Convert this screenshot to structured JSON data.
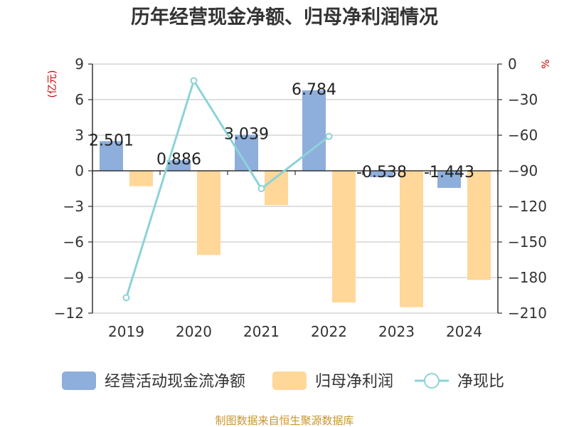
{
  "chart_data": {
    "type": "bar",
    "title": "历年经营现金净额、归母净利润情况",
    "categories": [
      "2019",
      "2020",
      "2021",
      "2022",
      "2023",
      "2024"
    ],
    "y_left": {
      "unit": "(亿元)",
      "ylim": [
        -12,
        9
      ],
      "ticks": [
        9,
        6,
        3,
        0,
        -3,
        -6,
        -9,
        -12
      ]
    },
    "y_right": {
      "unit": "%",
      "ylim": [
        -210,
        0
      ],
      "ticks": [
        0,
        -30,
        -60,
        -90,
        -120,
        -150,
        -180,
        -210
      ]
    },
    "series": [
      {
        "name": "经营活动现金流净额",
        "type": "bar",
        "axis": "left",
        "color": "#8eaedc",
        "values": [
          2.501,
          0.886,
          3.039,
          6.784,
          -0.538,
          -1.443
        ],
        "labels": [
          "2.501",
          "0.886",
          "3.039",
          "6.784",
          "-0.538",
          "-1.443"
        ]
      },
      {
        "name": "归母净利润",
        "type": "bar",
        "axis": "left",
        "color": "#ffd799",
        "values": [
          -1.3,
          -7.1,
          -2.9,
          -11.1,
          -11.5,
          -9.2
        ]
      },
      {
        "name": "净现比",
        "type": "line",
        "axis": "right",
        "color": "#8cd3d9",
        "values": [
          -197,
          -14,
          -105,
          -61,
          null,
          null
        ]
      }
    ],
    "legend_position": "bottom",
    "grid": true
  },
  "source": "制图数据来自恒生聚源数据库"
}
